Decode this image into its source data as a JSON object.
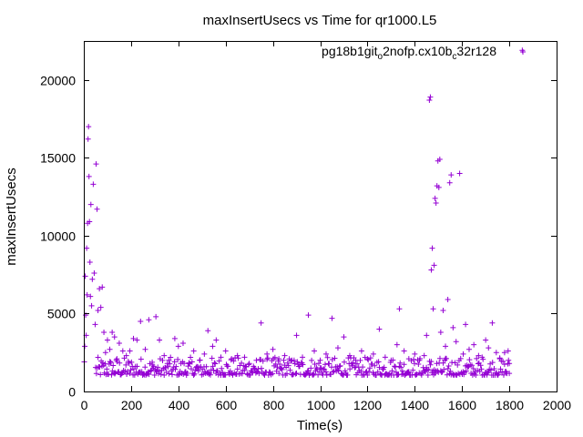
{
  "chart_data": {
    "type": "scatter",
    "title": "maxInsertUsecs vs Time for qr1000.L5",
    "xlabel": "Time(s)",
    "ylabel": "maxInsertUsecs",
    "xlim": [
      0,
      2000
    ],
    "ylim": [
      0,
      22500
    ],
    "x_ticks": [
      {
        "value": 0,
        "label": "0"
      },
      {
        "value": 200,
        "label": "200"
      },
      {
        "value": 400,
        "label": "400"
      },
      {
        "value": 600,
        "label": "600"
      },
      {
        "value": 800,
        "label": "800"
      },
      {
        "value": 1000,
        "label": "1000"
      },
      {
        "value": 1200,
        "label": "1200"
      },
      {
        "value": 1400,
        "label": "1400"
      },
      {
        "value": 1600,
        "label": "1600"
      },
      {
        "value": 1800,
        "label": "1800"
      },
      {
        "value": 2000,
        "label": "2000"
      }
    ],
    "y_ticks": [
      {
        "value": 0,
        "label": "0"
      },
      {
        "value": 5000,
        "label": "5000"
      },
      {
        "value": 10000,
        "label": "10000"
      },
      {
        "value": 15000,
        "label": "15000"
      },
      {
        "value": 20000,
        "label": "20000"
      }
    ],
    "grid": false,
    "legend_position": "top-right",
    "marker": "plus",
    "series_color": "#9400d3",
    "series": [
      {
        "name": "pg18b1git",
        "name_sub": "o",
        "name_mid": "2nofp.cx10b",
        "name_sub2": "c",
        "name_end": "32r128",
        "points": [
          [
            2,
            1900
          ],
          [
            4,
            2900
          ],
          [
            6,
            7400
          ],
          [
            8,
            4900
          ],
          [
            10,
            3600
          ],
          [
            12,
            9200
          ],
          [
            14,
            6200
          ],
          [
            16,
            10800
          ],
          [
            18,
            16200
          ],
          [
            20,
            17000
          ],
          [
            22,
            13800
          ],
          [
            24,
            10900
          ],
          [
            26,
            8300
          ],
          [
            28,
            6100
          ],
          [
            30,
            12000
          ],
          [
            33,
            5500
          ],
          [
            36,
            7200
          ],
          [
            40,
            13300
          ],
          [
            44,
            7600
          ],
          [
            48,
            4300
          ],
          [
            52,
            14600
          ],
          [
            56,
            11700
          ],
          [
            60,
            5200
          ],
          [
            66,
            6600
          ],
          [
            72,
            5400
          ],
          [
            78,
            6700
          ],
          [
            85,
            3800
          ],
          [
            92,
            2500
          ],
          [
            100,
            3300
          ],
          [
            110,
            2700
          ],
          [
            120,
            3800
          ],
          [
            130,
            3500
          ],
          [
            140,
            2100
          ],
          [
            150,
            3100
          ],
          [
            165,
            2600
          ],
          [
            180,
            2300
          ],
          [
            195,
            2600
          ],
          [
            210,
            3400
          ],
          [
            225,
            3300
          ],
          [
            240,
            4500
          ],
          [
            260,
            2700
          ],
          [
            275,
            4600
          ],
          [
            290,
            1700
          ],
          [
            305,
            4800
          ],
          [
            320,
            3300
          ],
          [
            340,
            2300
          ],
          [
            360,
            2000
          ],
          [
            385,
            3400
          ],
          [
            400,
            2900
          ],
          [
            420,
            3100
          ],
          [
            445,
            1800
          ],
          [
            465,
            2600
          ],
          [
            490,
            2000
          ],
          [
            510,
            2400
          ],
          [
            525,
            3900
          ],
          [
            545,
            2900
          ],
          [
            560,
            3300
          ],
          [
            580,
            2200
          ],
          [
            600,
            2600
          ],
          [
            625,
            2100
          ],
          [
            650,
            2300
          ],
          [
            680,
            2200
          ],
          [
            700,
            1800
          ],
          [
            730,
            2000
          ],
          [
            750,
            4400
          ],
          [
            775,
            2400
          ],
          [
            800,
            2700
          ],
          [
            825,
            2100
          ],
          [
            850,
            2300
          ],
          [
            880,
            2000
          ],
          [
            900,
            3600
          ],
          [
            925,
            2200
          ],
          [
            950,
            4900
          ],
          [
            975,
            2600
          ],
          [
            1000,
            2000
          ],
          [
            1025,
            2400
          ],
          [
            1050,
            4700
          ],
          [
            1075,
            2800
          ],
          [
            1100,
            3500
          ],
          [
            1125,
            2300
          ],
          [
            1150,
            2000
          ],
          [
            1175,
            2600
          ],
          [
            1200,
            2100
          ],
          [
            1225,
            2400
          ],
          [
            1250,
            4000
          ],
          [
            1275,
            2200
          ],
          [
            1300,
            2000
          ],
          [
            1325,
            3000
          ],
          [
            1335,
            5300
          ],
          [
            1355,
            2600
          ],
          [
            1375,
            2100
          ],
          [
            1400,
            2400
          ],
          [
            1420,
            2000
          ],
          [
            1440,
            2300
          ],
          [
            1450,
            3600
          ],
          [
            1462,
            18700
          ],
          [
            1466,
            18900
          ],
          [
            1470,
            7800
          ],
          [
            1474,
            9200
          ],
          [
            1478,
            5300
          ],
          [
            1482,
            8100
          ],
          [
            1486,
            12400
          ],
          [
            1490,
            12100
          ],
          [
            1494,
            13200
          ],
          [
            1498,
            14800
          ],
          [
            1502,
            13100
          ],
          [
            1506,
            14900
          ],
          [
            1510,
            3800
          ],
          [
            1520,
            5200
          ],
          [
            1530,
            2900
          ],
          [
            1540,
            5900
          ],
          [
            1548,
            13400
          ],
          [
            1554,
            13900
          ],
          [
            1562,
            4100
          ],
          [
            1575,
            3200
          ],
          [
            1590,
            14000
          ],
          [
            1605,
            2400
          ],
          [
            1615,
            4300
          ],
          [
            1630,
            2700
          ],
          [
            1650,
            3000
          ],
          [
            1670,
            2300
          ],
          [
            1685,
            2200
          ],
          [
            1700,
            3300
          ],
          [
            1712,
            2800
          ],
          [
            1728,
            4400
          ],
          [
            1745,
            2500
          ],
          [
            1760,
            2100
          ],
          [
            1780,
            2500
          ],
          [
            1795,
            2600
          ],
          [
            1800,
            1800
          ],
          [
            1855,
            21900
          ]
        ]
      }
    ],
    "dense_band": {
      "x_range": [
        50,
        1800
      ],
      "y_range": [
        1050,
        2200
      ],
      "count": 520
    }
  }
}
